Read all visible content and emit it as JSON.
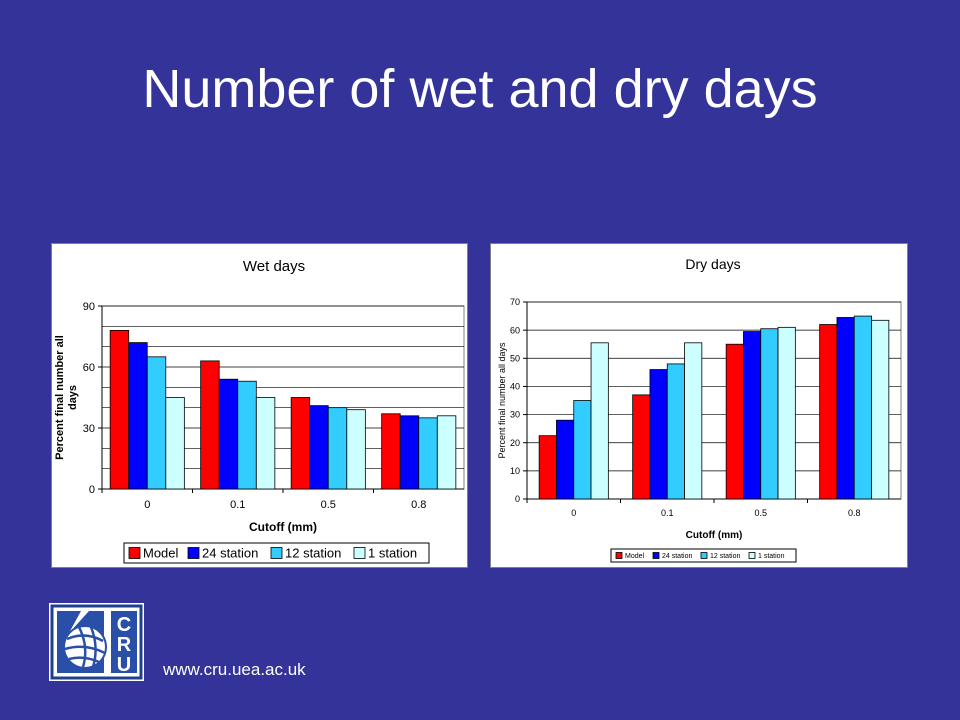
{
  "slide": {
    "title": "Number of wet and dry days",
    "url": "www.cru.uea.ac.uk"
  },
  "colors": {
    "background": "#33339a",
    "model": "#ff0000",
    "station24": "#0000ff",
    "station12": "#33ccff",
    "station1": "#ccffff"
  },
  "logo": {
    "icon": "cru-globe-logo-icon",
    "letters": "CRU"
  },
  "chart_data": [
    {
      "type": "bar",
      "title": "Wet days",
      "xlabel": "Cutoff (mm)",
      "ylabel": "Percent final number all days",
      "categories": [
        "0",
        "0.1",
        "0.5",
        "0.8"
      ],
      "ylim": [
        0,
        90
      ],
      "yticks": [
        "0",
        "30",
        "60",
        "90"
      ],
      "legend_position": "bottom",
      "series": [
        {
          "name": "Model",
          "values": [
            78,
            63,
            45,
            37
          ]
        },
        {
          "name": "24 station",
          "values": [
            72,
            54,
            41,
            36
          ]
        },
        {
          "name": "12 station",
          "values": [
            65,
            53,
            40,
            35
          ]
        },
        {
          "name": "1 station",
          "values": [
            45,
            45,
            39,
            36
          ]
        }
      ]
    },
    {
      "type": "bar",
      "title": "Dry days",
      "xlabel": "Cutoff (mm)",
      "ylabel": "Percent final number all days",
      "categories": [
        "0",
        "0.1",
        "0.5",
        "0.8"
      ],
      "ylim": [
        0,
        70
      ],
      "yticks": [
        "0",
        "10",
        "20",
        "30",
        "40",
        "50",
        "60",
        "70"
      ],
      "legend_position": "bottom",
      "series": [
        {
          "name": "Model",
          "values": [
            22.5,
            37,
            55,
            62
          ]
        },
        {
          "name": "24 station",
          "values": [
            28,
            46,
            59.5,
            64.5
          ]
        },
        {
          "name": "12 station",
          "values": [
            35,
            48,
            60.5,
            65
          ]
        },
        {
          "name": "1 station",
          "values": [
            55.5,
            55.5,
            61,
            63.5
          ]
        }
      ]
    }
  ]
}
